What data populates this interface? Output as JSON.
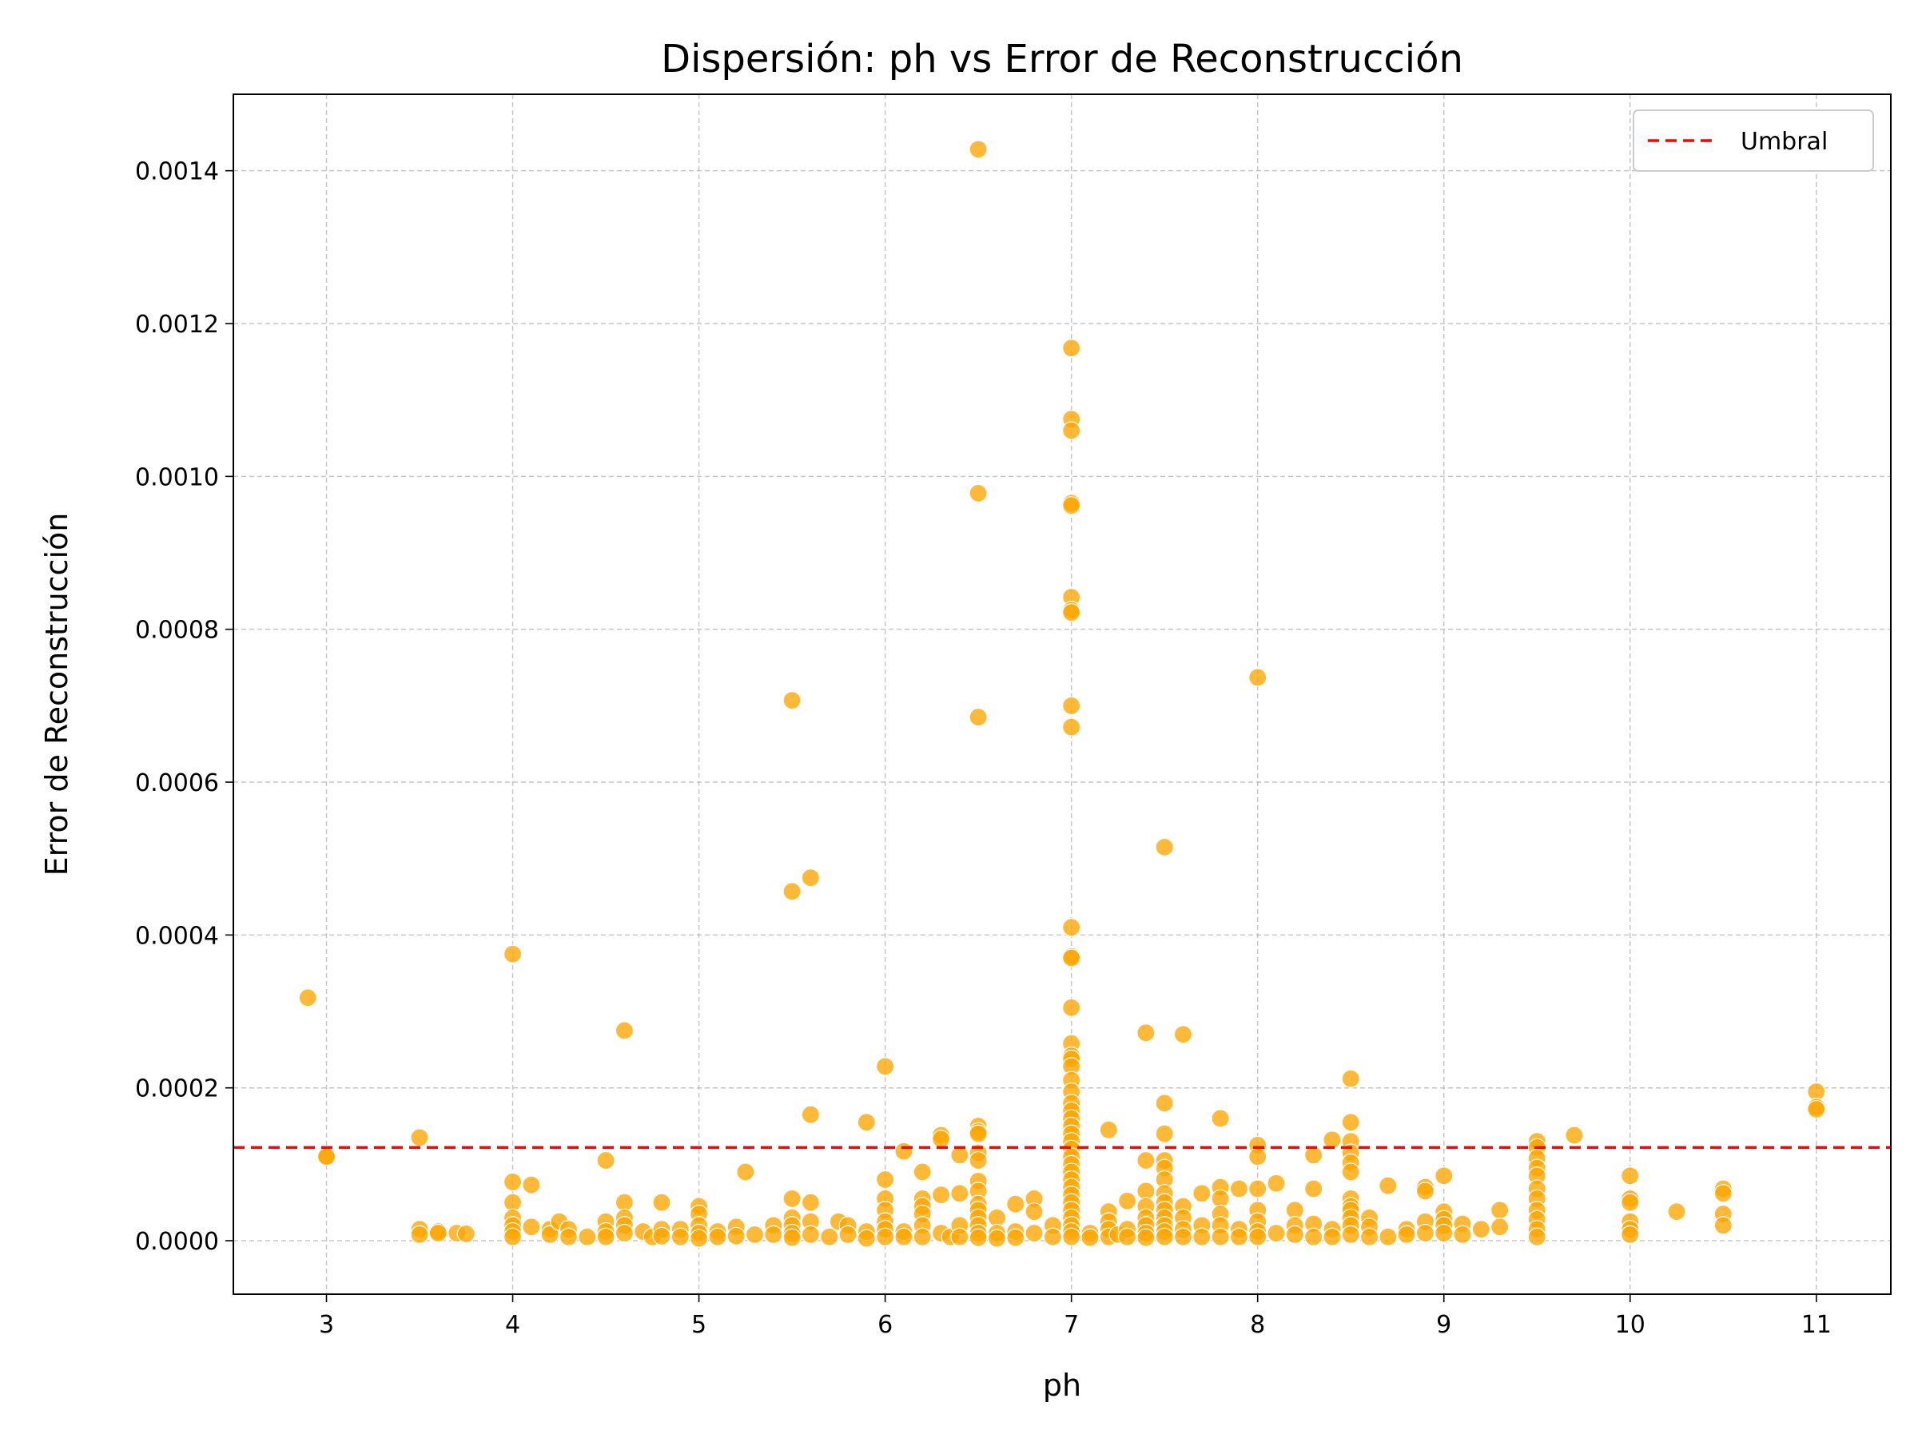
{
  "chart_data": {
    "type": "scatter",
    "title": "Dispersión: ph vs Error de Reconstrucción",
    "xlabel": "ph",
    "ylabel": "Error de Reconstrucción",
    "xlim": [
      2.5,
      11.4
    ],
    "ylim": [
      -7e-05,
      0.0015
    ],
    "xticks": [
      3,
      4,
      5,
      6,
      7,
      8,
      9,
      10,
      11
    ],
    "xtick_labels": [
      "3",
      "4",
      "5",
      "6",
      "7",
      "8",
      "9",
      "10",
      "11"
    ],
    "yticks": [
      0,
      0.0002,
      0.0004,
      0.0006,
      0.0008,
      0.001,
      0.0012,
      0.0014
    ],
    "ytick_labels": [
      "0.0000",
      "0.0002",
      "0.0004",
      "0.0006",
      "0.0008",
      "0.0010",
      "0.0012",
      "0.0014"
    ],
    "grid": true,
    "legend_position": "top-right",
    "marker_color": "#ffa500",
    "threshold": {
      "name": "Umbral",
      "value": 0.000122,
      "color": "#ff0000",
      "style": "dashed"
    },
    "series": [
      {
        "points": [
          [
            2.9,
            0.000318
          ],
          [
            3.0,
            0.000111
          ],
          [
            3.0,
            0.00011
          ],
          [
            3.5,
            0.000135
          ],
          [
            3.5,
            1.5e-05
          ],
          [
            3.5,
            8e-06
          ],
          [
            3.6,
            1.2e-05
          ],
          [
            3.6,
            1e-05
          ],
          [
            3.7,
            1e-05
          ],
          [
            3.75,
            9e-06
          ],
          [
            4.0,
            0.000375
          ],
          [
            4.0,
            7.7e-05
          ],
          [
            4.0,
            5e-05
          ],
          [
            4.0,
            3e-05
          ],
          [
            4.0,
            2e-05
          ],
          [
            4.0,
            1.2e-05
          ],
          [
            4.0,
            5e-06
          ],
          [
            4.1,
            7.3e-05
          ],
          [
            4.1,
            1.8e-05
          ],
          [
            4.2,
            1.5e-05
          ],
          [
            4.2,
            8e-06
          ],
          [
            4.25,
            2.5e-05
          ],
          [
            4.3,
            1.5e-05
          ],
          [
            4.3,
            5e-06
          ],
          [
            4.4,
            5e-06
          ],
          [
            4.5,
            0.000105
          ],
          [
            4.5,
            2.5e-05
          ],
          [
            4.5,
            1.2e-05
          ],
          [
            4.5,
            5e-06
          ],
          [
            4.6,
            0.000275
          ],
          [
            4.6,
            5e-05
          ],
          [
            4.6,
            3e-05
          ],
          [
            4.6,
            2e-05
          ],
          [
            4.6,
            1e-05
          ],
          [
            4.7,
            1.2e-05
          ],
          [
            4.75,
            5e-06
          ],
          [
            4.8,
            5e-05
          ],
          [
            4.8,
            1.5e-05
          ],
          [
            4.8,
            6e-06
          ],
          [
            4.9,
            1.5e-05
          ],
          [
            4.9,
            5e-06
          ],
          [
            5.0,
            4.5e-05
          ],
          [
            5.0,
            3.5e-05
          ],
          [
            5.0,
            2e-05
          ],
          [
            5.0,
            1e-05
          ],
          [
            5.0,
            3e-06
          ],
          [
            5.1,
            1.2e-05
          ],
          [
            5.1,
            5e-06
          ],
          [
            5.2,
            1.8e-05
          ],
          [
            5.2,
            6e-06
          ],
          [
            5.25,
            9e-05
          ],
          [
            5.3,
            8e-06
          ],
          [
            5.4,
            2e-05
          ],
          [
            5.4,
            8e-06
          ],
          [
            5.5,
            0.000707
          ],
          [
            5.5,
            0.000457
          ],
          [
            5.5,
            5.5e-05
          ],
          [
            5.5,
            3e-05
          ],
          [
            5.5,
            2e-05
          ],
          [
            5.5,
            1e-05
          ],
          [
            5.5,
            4e-06
          ],
          [
            5.6,
            0.000475
          ],
          [
            5.6,
            0.000165
          ],
          [
            5.6,
            5e-05
          ],
          [
            5.6,
            2.5e-05
          ],
          [
            5.6,
            8e-06
          ],
          [
            5.7,
            5e-06
          ],
          [
            5.75,
            2.5e-05
          ],
          [
            5.8,
            2e-05
          ],
          [
            5.8,
            8e-06
          ],
          [
            5.9,
            0.000155
          ],
          [
            5.9,
            1.2e-05
          ],
          [
            5.9,
            3e-06
          ],
          [
            6.0,
            0.000228
          ],
          [
            6.0,
            8e-05
          ],
          [
            6.0,
            5.5e-05
          ],
          [
            6.0,
            4e-05
          ],
          [
            6.0,
            2.5e-05
          ],
          [
            6.0,
            1.5e-05
          ],
          [
            6.0,
            5e-06
          ],
          [
            6.1,
            0.000117
          ],
          [
            6.1,
            1.2e-05
          ],
          [
            6.1,
            5e-06
          ],
          [
            6.2,
            9e-05
          ],
          [
            6.2,
            5.5e-05
          ],
          [
            6.2,
            4.5e-05
          ],
          [
            6.2,
            3.5e-05
          ],
          [
            6.2,
            2e-05
          ],
          [
            6.2,
            5e-06
          ],
          [
            6.3,
            0.000138
          ],
          [
            6.3,
            0.000133
          ],
          [
            6.3,
            6e-05
          ],
          [
            6.3,
            1e-05
          ],
          [
            6.35,
            5e-06
          ],
          [
            6.4,
            0.000112
          ],
          [
            6.4,
            6.2e-05
          ],
          [
            6.4,
            2e-05
          ],
          [
            6.4,
            5e-06
          ],
          [
            6.5,
            0.001428
          ],
          [
            6.5,
            0.000978
          ],
          [
            6.5,
            0.000685
          ],
          [
            6.5,
            0.00015
          ],
          [
            6.5,
            0.000143
          ],
          [
            6.5,
            0.00014
          ],
          [
            6.5,
            0.000115
          ],
          [
            6.5,
            0.000105
          ],
          [
            6.5,
            7.8e-05
          ],
          [
            6.5,
            6.5e-05
          ],
          [
            6.5,
            4.8e-05
          ],
          [
            6.5,
            4e-05
          ],
          [
            6.5,
            3e-05
          ],
          [
            6.5,
            2e-05
          ],
          [
            6.5,
            1e-05
          ],
          [
            6.5,
            4e-06
          ],
          [
            6.6,
            3e-05
          ],
          [
            6.6,
            1e-05
          ],
          [
            6.6,
            3e-06
          ],
          [
            6.7,
            4.8e-05
          ],
          [
            6.7,
            1.2e-05
          ],
          [
            6.7,
            4e-06
          ],
          [
            6.8,
            5.5e-05
          ],
          [
            6.8,
            3.8e-05
          ],
          [
            6.8,
            1e-05
          ],
          [
            6.9,
            2e-05
          ],
          [
            6.9,
            5e-06
          ],
          [
            7.0,
            0.001168
          ],
          [
            7.0,
            0.001075
          ],
          [
            7.0,
            0.00106
          ],
          [
            7.0,
            0.000965
          ],
          [
            7.0,
            0.000962
          ],
          [
            7.0,
            0.000842
          ],
          [
            7.0,
            0.000825
          ],
          [
            7.0,
            0.000822
          ],
          [
            7.0,
            0.0007
          ],
          [
            7.0,
            0.000672
          ],
          [
            7.0,
            0.00041
          ],
          [
            7.0,
            0.000372
          ],
          [
            7.0,
            0.00037
          ],
          [
            7.0,
            0.000305
          ],
          [
            7.0,
            0.000258
          ],
          [
            7.0,
            0.000242
          ],
          [
            7.0,
            0.000238
          ],
          [
            7.0,
            0.000228
          ],
          [
            7.0,
            0.00021
          ],
          [
            7.0,
            0.000195
          ],
          [
            7.0,
            0.00018
          ],
          [
            7.0,
            0.00017
          ],
          [
            7.0,
            0.00016
          ],
          [
            7.0,
            0.00015
          ],
          [
            7.0,
            0.00014
          ],
          [
            7.0,
            0.00013
          ],
          [
            7.0,
            0.00012
          ],
          [
            7.0,
            0.00011
          ],
          [
            7.0,
            0.0001
          ],
          [
            7.0,
            9e-05
          ],
          [
            7.0,
            8e-05
          ],
          [
            7.0,
            7e-05
          ],
          [
            7.0,
            6e-05
          ],
          [
            7.0,
            5e-05
          ],
          [
            7.0,
            4e-05
          ],
          [
            7.0,
            3e-05
          ],
          [
            7.0,
            2e-05
          ],
          [
            7.0,
            1.2e-05
          ],
          [
            7.0,
            5e-06
          ],
          [
            7.1,
            1e-05
          ],
          [
            7.1,
            4e-06
          ],
          [
            7.2,
            0.000145
          ],
          [
            7.2,
            3.8e-05
          ],
          [
            7.2,
            2.5e-05
          ],
          [
            7.2,
            1.5e-05
          ],
          [
            7.2,
            5e-06
          ],
          [
            7.25,
            8e-06
          ],
          [
            7.3,
            5.2e-05
          ],
          [
            7.3,
            1.5e-05
          ],
          [
            7.3,
            5e-06
          ],
          [
            7.4,
            0.000272
          ],
          [
            7.4,
            0.000105
          ],
          [
            7.4,
            6.5e-05
          ],
          [
            7.4,
            4.5e-05
          ],
          [
            7.4,
            3e-05
          ],
          [
            7.4,
            2e-05
          ],
          [
            7.4,
            1e-05
          ],
          [
            7.4,
            4e-06
          ],
          [
            7.5,
            0.000515
          ],
          [
            7.5,
            0.00018
          ],
          [
            7.5,
            0.00014
          ],
          [
            7.5,
            0.000105
          ],
          [
            7.5,
            9.5e-05
          ],
          [
            7.5,
            8e-05
          ],
          [
            7.5,
            6.2e-05
          ],
          [
            7.5,
            5e-05
          ],
          [
            7.5,
            4e-05
          ],
          [
            7.5,
            3e-05
          ],
          [
            7.5,
            2e-05
          ],
          [
            7.5,
            1.2e-05
          ],
          [
            7.5,
            5e-06
          ],
          [
            7.6,
            0.00027
          ],
          [
            7.6,
            4.5e-05
          ],
          [
            7.6,
            3e-05
          ],
          [
            7.6,
            1.5e-05
          ],
          [
            7.6,
            5e-06
          ],
          [
            7.7,
            6.2e-05
          ],
          [
            7.7,
            2e-05
          ],
          [
            7.7,
            5e-06
          ],
          [
            7.8,
            0.00016
          ],
          [
            7.8,
            7e-05
          ],
          [
            7.8,
            5.5e-05
          ],
          [
            7.8,
            3.5e-05
          ],
          [
            7.8,
            2e-05
          ],
          [
            7.8,
            5e-06
          ],
          [
            7.9,
            6.8e-05
          ],
          [
            7.9,
            1.5e-05
          ],
          [
            7.9,
            5e-06
          ],
          [
            8.0,
            0.000737
          ],
          [
            8.0,
            0.000125
          ],
          [
            8.0,
            0.00011
          ],
          [
            8.0,
            6.8e-05
          ],
          [
            8.0,
            4e-05
          ],
          [
            8.0,
            2.5e-05
          ],
          [
            8.0,
            1.2e-05
          ],
          [
            8.0,
            5e-06
          ],
          [
            8.1,
            7.5e-05
          ],
          [
            8.1,
            1e-05
          ],
          [
            8.2,
            4e-05
          ],
          [
            8.2,
            2e-05
          ],
          [
            8.2,
            8e-06
          ],
          [
            8.3,
            0.000112
          ],
          [
            8.3,
            6.8e-05
          ],
          [
            8.3,
            2.2e-05
          ],
          [
            8.3,
            5e-06
          ],
          [
            8.4,
            0.000132
          ],
          [
            8.4,
            1.5e-05
          ],
          [
            8.4,
            5e-06
          ],
          [
            8.5,
            0.000212
          ],
          [
            8.5,
            0.000155
          ],
          [
            8.5,
            0.00013
          ],
          [
            8.5,
            0.000115
          ],
          [
            8.5,
            0.000102
          ],
          [
            8.5,
            9e-05
          ],
          [
            8.5,
            5.5e-05
          ],
          [
            8.5,
            4.5e-05
          ],
          [
            8.5,
            4e-05
          ],
          [
            8.5,
            3e-05
          ],
          [
            8.5,
            2e-05
          ],
          [
            8.5,
            8e-06
          ],
          [
            8.6,
            3e-05
          ],
          [
            8.6,
            1.8e-05
          ],
          [
            8.6,
            5e-06
          ],
          [
            8.7,
            7.2e-05
          ],
          [
            8.7,
            5e-06
          ],
          [
            8.8,
            1.5e-05
          ],
          [
            8.8,
            8e-06
          ],
          [
            8.9,
            7e-05
          ],
          [
            8.9,
            6.5e-05
          ],
          [
            8.9,
            2.5e-05
          ],
          [
            8.9,
            1e-05
          ],
          [
            9.0,
            8.5e-05
          ],
          [
            9.0,
            3.8e-05
          ],
          [
            9.0,
            2.8e-05
          ],
          [
            9.0,
            2e-05
          ],
          [
            9.0,
            1e-05
          ],
          [
            9.1,
            2.2e-05
          ],
          [
            9.1,
            8e-06
          ],
          [
            9.2,
            1.5e-05
          ],
          [
            9.3,
            4e-05
          ],
          [
            9.3,
            1.8e-05
          ],
          [
            9.5,
            0.00013
          ],
          [
            9.5,
            0.000122
          ],
          [
            9.5,
            0.000108
          ],
          [
            9.5,
            9.5e-05
          ],
          [
            9.5,
            8.5e-05
          ],
          [
            9.5,
            6.8e-05
          ],
          [
            9.5,
            5.5e-05
          ],
          [
            9.5,
            4e-05
          ],
          [
            9.5,
            2.8e-05
          ],
          [
            9.5,
            1.5e-05
          ],
          [
            9.5,
            5e-06
          ],
          [
            9.7,
            0.000138
          ],
          [
            10.0,
            8.5e-05
          ],
          [
            10.0,
            5.5e-05
          ],
          [
            10.0,
            5e-05
          ],
          [
            10.0,
            2.5e-05
          ],
          [
            10.0,
            1.5e-05
          ],
          [
            10.0,
            8e-06
          ],
          [
            10.25,
            3.8e-05
          ],
          [
            10.5,
            6.8e-05
          ],
          [
            10.5,
            6.2e-05
          ],
          [
            10.5,
            3.5e-05
          ],
          [
            10.5,
            2e-05
          ],
          [
            11.0,
            0.000195
          ],
          [
            11.0,
            0.000175
          ],
          [
            11.0,
            0.000172
          ]
        ]
      }
    ]
  }
}
